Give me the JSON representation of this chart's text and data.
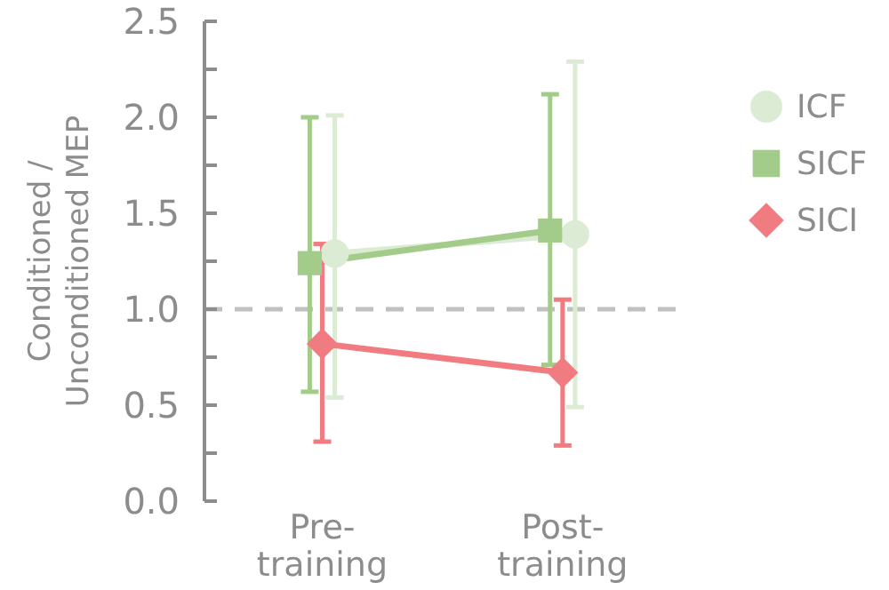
{
  "chart_data": {
    "type": "line",
    "ylabel": "Conditioned / Unconditioned MEP",
    "categories": [
      "Pre-training",
      "Post-training"
    ],
    "series": [
      {
        "name": "ICF",
        "color": "#dcecd4",
        "marker": "circle",
        "values": [
          1.29,
          1.39
        ],
        "errors": [
          [
            0.54,
            2.01
          ],
          [
            0.49,
            2.29
          ]
        ]
      },
      {
        "name": "SICF",
        "color": "#a3cc8b",
        "marker": "square",
        "values": [
          1.24,
          1.41
        ],
        "errors": [
          [
            0.57,
            2.0
          ],
          [
            0.71,
            2.12
          ]
        ]
      },
      {
        "name": "SICI",
        "color": "#f07c82",
        "marker": "diamond",
        "values": [
          0.82,
          0.67
        ],
        "errors": [
          [
            0.31,
            1.34
          ],
          [
            0.29,
            1.05
          ]
        ]
      }
    ],
    "ylim": [
      0,
      2.5
    ],
    "yticks": [
      {
        "value": 0,
        "label": "0.0"
      },
      {
        "value": 0.25,
        "label": null
      },
      {
        "value": 0.5,
        "label": "0.5"
      },
      {
        "value": 0.75,
        "label": null
      },
      {
        "value": 1,
        "label": "1.0"
      },
      {
        "value": 1.25,
        "label": null
      },
      {
        "value": 1.5,
        "label": "1.5"
      },
      {
        "value": 1.75,
        "label": null
      },
      {
        "value": 2,
        "label": "2.0"
      },
      {
        "value": 2.25,
        "label": null
      },
      {
        "value": 2.5,
        "label": "2.5"
      }
    ],
    "ref_lines": [
      {
        "axis": "y",
        "value": 1,
        "color": "#c0c0c0",
        "line_style": "dashed"
      }
    ],
    "legend": "top right",
    "grid": false,
    "line_style": "solid"
  }
}
